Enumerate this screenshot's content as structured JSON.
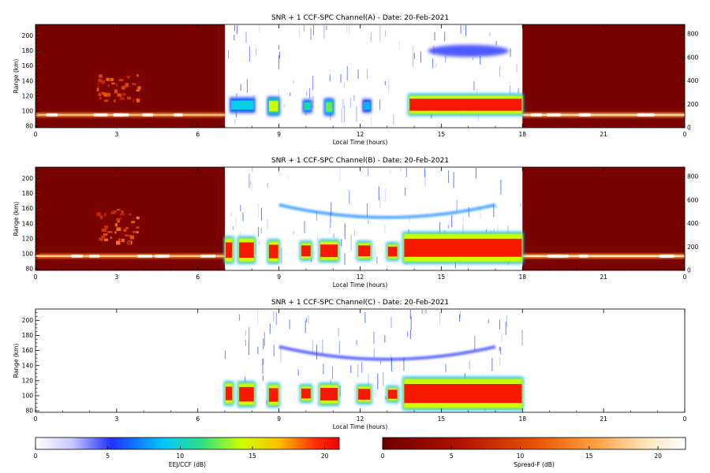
{
  "chart_data": [
    {
      "type": "heatmap",
      "title": "SNR + 1 CCF-SPC Channel(A) - Date: 20-Feb-2021",
      "xlabel": "Local Time (hours)",
      "ylabel": "Range (km)",
      "xlim": [
        0,
        24
      ],
      "ylim": [
        78,
        215
      ],
      "y2lim": [
        0,
        880
      ],
      "x_ticks": [
        "0",
        "3",
        "6",
        "9",
        "12",
        "15",
        "18",
        "21",
        "0"
      ],
      "y_ticks": [
        80,
        100,
        120,
        140,
        160,
        180,
        200
      ],
      "y2_ticks": [
        0,
        200,
        400,
        600,
        800
      ],
      "day_window_hours": [
        7,
        18
      ],
      "night_colormap": "Spread-F (dB)",
      "day_colormap": "EEJ/CCF (dB)",
      "features": [
        {
          "kind": "night_layer",
          "x_range": [
            0,
            7
          ],
          "y": 95,
          "level": 18
        },
        {
          "kind": "night_layer",
          "x_range": [
            18,
            24
          ],
          "y": 95,
          "level": 20
        },
        {
          "kind": "spread_f_patch",
          "x_range": [
            2.2,
            3.8
          ],
          "y_range": [
            115,
            150
          ],
          "level": 8
        },
        {
          "kind": "eej_echo",
          "x_range": [
            7.2,
            8.1
          ],
          "y_range": [
            98,
            118
          ],
          "level": 9
        },
        {
          "kind": "eej_echo",
          "x_range": [
            8.6,
            9.0
          ],
          "y_range": [
            95,
            118
          ],
          "level": 14
        },
        {
          "kind": "eej_echo",
          "x_range": [
            9.9,
            10.2
          ],
          "y_range": [
            98,
            115
          ],
          "level": 10
        },
        {
          "kind": "eej_echo",
          "x_range": [
            10.7,
            11.0
          ],
          "y_range": [
            95,
            116
          ],
          "level": 12
        },
        {
          "kind": "eej_echo",
          "x_range": [
            12.1,
            12.4
          ],
          "y_range": [
            98,
            116
          ],
          "level": 8
        },
        {
          "kind": "eej_echo",
          "x_range": [
            13.8,
            18
          ],
          "y_range": [
            95,
            122
          ],
          "level": 20
        },
        {
          "kind": "weak_layer",
          "x_range": [
            14.5,
            17.5
          ],
          "y_range": [
            172,
            188
          ],
          "level": 5
        }
      ]
    },
    {
      "type": "heatmap",
      "title": "SNR + 1 CCF-SPC Channel(B) - Date: 20-Feb-2021",
      "xlabel": "Local Time (hours)",
      "ylabel": "Range (km)",
      "xlim": [
        0,
        24
      ],
      "ylim": [
        78,
        215
      ],
      "y2lim": [
        0,
        880
      ],
      "x_ticks": [
        "0",
        "3",
        "6",
        "9",
        "12",
        "15",
        "18",
        "21",
        "0"
      ],
      "y_ticks": [
        80,
        100,
        120,
        140,
        160,
        180,
        200
      ],
      "y2_ticks": [
        0,
        200,
        400,
        600,
        800
      ],
      "day_window_hours": [
        7,
        18
      ],
      "night_colormap": "Spread-F (dB)",
      "day_colormap": "EEJ/CCF (dB)",
      "features": [
        {
          "kind": "night_layer",
          "x_range": [
            0,
            7
          ],
          "y": 97,
          "level": 18
        },
        {
          "kind": "night_layer",
          "x_range": [
            18,
            24
          ],
          "y": 97,
          "level": 20
        },
        {
          "kind": "spread_f_patch",
          "x_range": [
            2.2,
            3.8
          ],
          "y_range": [
            115,
            160
          ],
          "level": 9
        },
        {
          "kind": "eej_echo",
          "x_range": [
            7.0,
            7.3
          ],
          "y_range": [
            88,
            122
          ],
          "level": 20
        },
        {
          "kind": "eej_echo",
          "x_range": [
            7.5,
            8.1
          ],
          "y_range": [
            88,
            122
          ],
          "level": 20
        },
        {
          "kind": "eej_echo",
          "x_range": [
            8.6,
            9.0
          ],
          "y_range": [
            88,
            118
          ],
          "level": 20
        },
        {
          "kind": "eej_echo",
          "x_range": [
            9.8,
            10.2
          ],
          "y_range": [
            92,
            116
          ],
          "level": 20
        },
        {
          "kind": "eej_echo",
          "x_range": [
            10.5,
            11.2
          ],
          "y_range": [
            90,
            118
          ],
          "level": 20
        },
        {
          "kind": "eej_echo",
          "x_range": [
            11.9,
            12.4
          ],
          "y_range": [
            92,
            116
          ],
          "level": 20
        },
        {
          "kind": "eej_echo",
          "x_range": [
            13.0,
            13.4
          ],
          "y_range": [
            92,
            114
          ],
          "level": 20
        },
        {
          "kind": "eej_echo",
          "x_range": [
            13.6,
            18
          ],
          "y_range": [
            88,
            128
          ],
          "level": 20
        },
        {
          "kind": "weak_arc",
          "x_range": [
            9,
            17
          ],
          "y_range": [
            140,
            165
          ],
          "level": 5
        }
      ]
    },
    {
      "type": "heatmap",
      "title": "SNR + 1 CCF-SPC Channel(C) - Date: 20-Feb-2021",
      "xlabel": "Local Time (hours)",
      "ylabel": "Range (km)",
      "xlim": [
        0,
        24
      ],
      "ylim": [
        78,
        215
      ],
      "x_ticks": [
        "0",
        "3",
        "6",
        "9",
        "12",
        "15",
        "18",
        "21",
        "0"
      ],
      "y_ticks": [
        80,
        100,
        120,
        140,
        160,
        180,
        200
      ],
      "day_window_hours": [
        7,
        18
      ],
      "day_colormap": "EEJ/CCF (dB)",
      "features": [
        {
          "kind": "eej_echo",
          "x_range": [
            7.0,
            7.3
          ],
          "y_range": [
            88,
            118
          ],
          "level": 20
        },
        {
          "kind": "eej_echo",
          "x_range": [
            7.5,
            8.1
          ],
          "y_range": [
            86,
            118
          ],
          "level": 20
        },
        {
          "kind": "eej_echo",
          "x_range": [
            8.6,
            9.0
          ],
          "y_range": [
            86,
            116
          ],
          "level": 20
        },
        {
          "kind": "eej_echo",
          "x_range": [
            9.8,
            10.2
          ],
          "y_range": [
            92,
            114
          ],
          "level": 20
        },
        {
          "kind": "eej_echo",
          "x_range": [
            10.5,
            11.2
          ],
          "y_range": [
            88,
            116
          ],
          "level": 20
        },
        {
          "kind": "eej_echo",
          "x_range": [
            11.9,
            12.4
          ],
          "y_range": [
            90,
            114
          ],
          "level": 20
        },
        {
          "kind": "eej_echo",
          "x_range": [
            13.0,
            13.4
          ],
          "y_range": [
            92,
            112
          ],
          "level": 20
        },
        {
          "kind": "eej_echo",
          "x_range": [
            13.6,
            18
          ],
          "y_range": [
            82,
            124
          ],
          "level": 20
        },
        {
          "kind": "weak_arc",
          "x_range": [
            9,
            17
          ],
          "y_range": [
            140,
            165
          ],
          "level": 3
        }
      ]
    }
  ],
  "colorbars": [
    {
      "label": "EEJ/CCF (dB)",
      "ticks": [
        "0",
        "5",
        "10",
        "15",
        "20"
      ],
      "range": [
        0,
        21
      ],
      "colormap": "white-blue-cyan-green-yellow-red"
    },
    {
      "label": "Spread-F (dB)",
      "ticks": [
        "0",
        "5",
        "10",
        "15",
        "20"
      ],
      "range": [
        0,
        22
      ],
      "colormap": "darkred-red-orange-yellow-white"
    }
  ]
}
